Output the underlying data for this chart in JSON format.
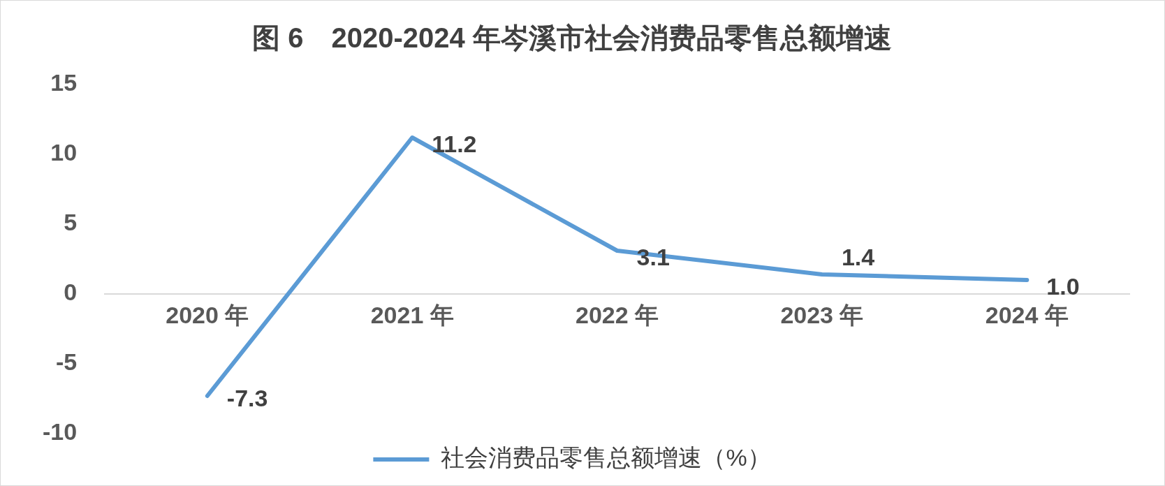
{
  "chart_data": {
    "type": "line",
    "title": "图 6　2020-2024 年岑溪市社会消费品零售总额增速",
    "categories": [
      "2020 年",
      "2021 年",
      "2022 年",
      "2023 年",
      "2024 年"
    ],
    "series": [
      {
        "name": "社会消费品零售总额增速（%）",
        "color": "#5b9bd5",
        "values": [
          -7.3,
          11.2,
          3.1,
          1.4,
          1.0
        ],
        "value_labels": [
          "-7.3",
          "11.2",
          "3.1",
          "1.4",
          "1.0"
        ]
      }
    ],
    "ylim": [
      -10,
      15
    ],
    "yticks": [
      -10,
      -5,
      0,
      5,
      10,
      15
    ],
    "grid": false,
    "legend": "bottom",
    "marker": "none"
  }
}
